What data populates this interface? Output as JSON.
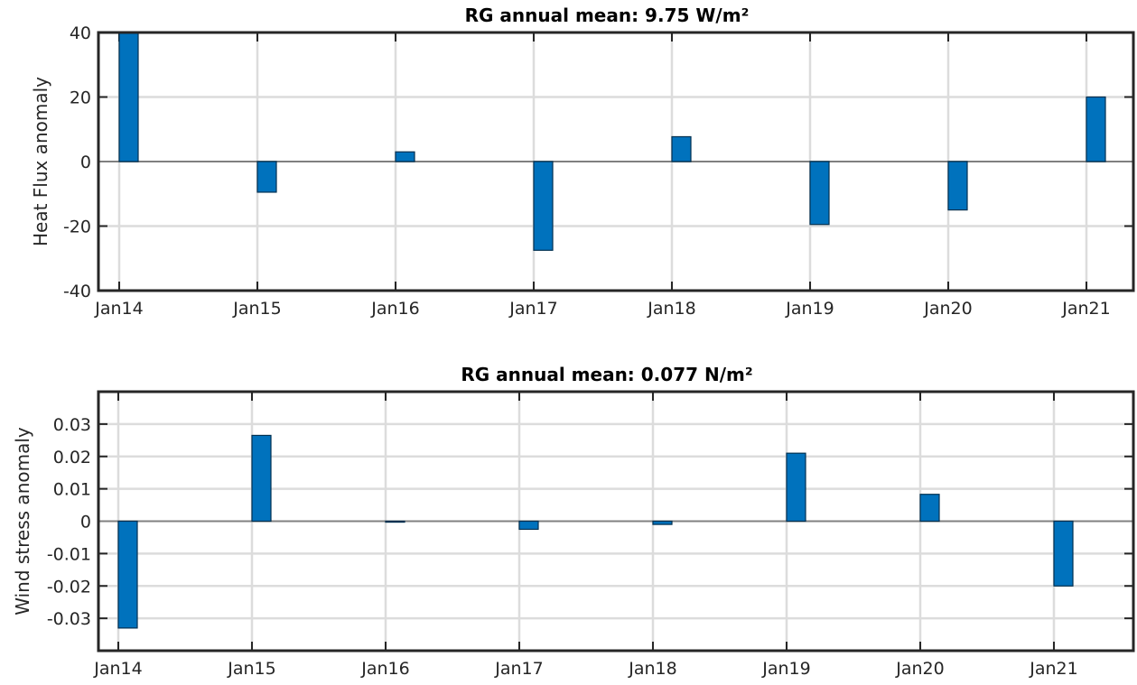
{
  "chart_data": [
    {
      "type": "bar",
      "title": "RG  annual mean: 9.75 W/m²",
      "xlabel": "",
      "ylabel": "Heat Flux anomaly",
      "x": [
        "Jan14",
        "Jan15",
        "Jan16",
        "Jan17",
        "Jan18",
        "Jan19",
        "Jan20",
        "Jan21"
      ],
      "values": [
        40,
        -9.5,
        3,
        -27.5,
        7.7,
        -19.5,
        -15,
        20
      ],
      "ylim": [
        -40,
        40
      ],
      "yticks": [
        "-40",
        "-20",
        "0",
        "20",
        "40"
      ],
      "grid": true,
      "bar_color": "#0072BD"
    },
    {
      "type": "bar",
      "title": "RG  annual mean: 0.077 N/m²",
      "xlabel": "",
      "ylabel": "Wind stress anomaly",
      "x": [
        "Jan14",
        "Jan15",
        "Jan16",
        "Jan17",
        "Jan18",
        "Jan19",
        "Jan20",
        "Jan21"
      ],
      "values": [
        -0.033,
        0.0265,
        -0.0003,
        -0.0025,
        -0.001,
        0.021,
        0.0083,
        -0.02
      ],
      "ylim": [
        -0.04,
        0.04
      ],
      "yticks": [
        "-0.03",
        "-0.02",
        "-0.01",
        "0",
        "0.01",
        "0.02",
        "0.03"
      ],
      "grid": true,
      "bar_color": "#0072BD"
    }
  ]
}
